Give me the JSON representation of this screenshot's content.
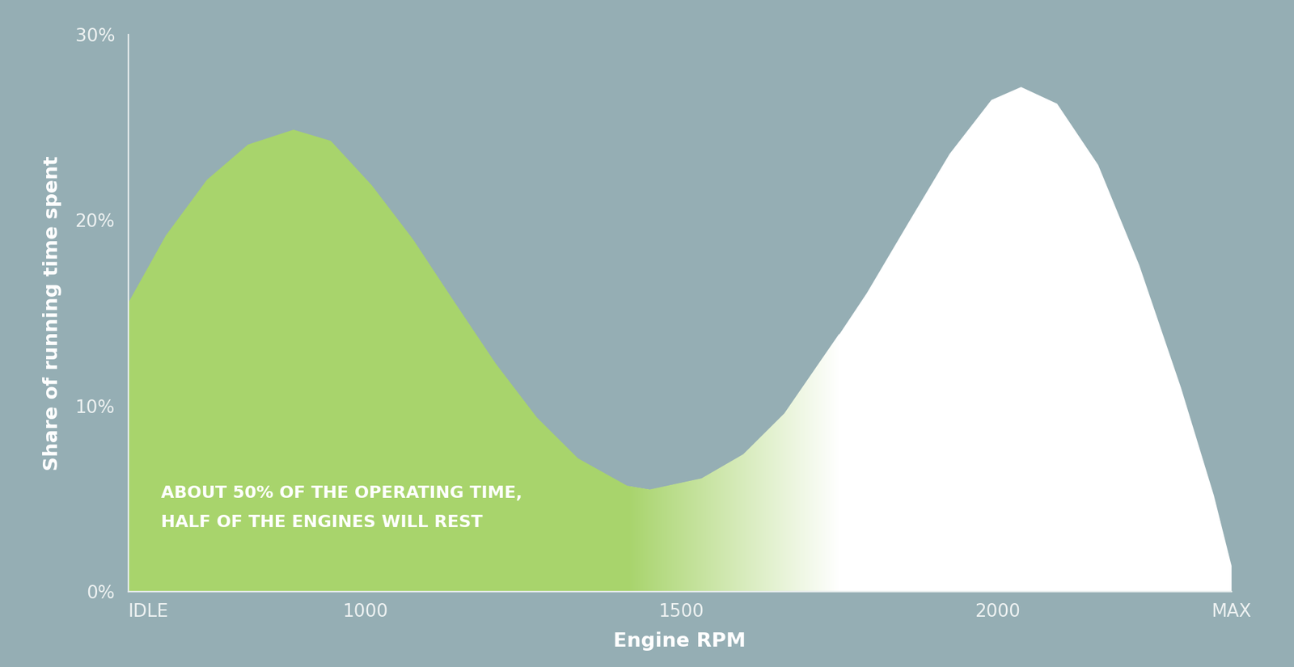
{
  "chart_data": {
    "type": "area",
    "x_label": "Engine RPM",
    "y_label": "Share of running time spent",
    "annotation": "ABOUT 50% OF THE OPERATING TIME,\nHALF OF THE ENGINES WILL REST",
    "x": [
      625,
      684,
      749,
      814,
      886,
      945,
      1010,
      1075,
      1141,
      1206,
      1271,
      1336,
      1415,
      1450,
      1532,
      1598,
      1663,
      1750,
      1793,
      1859,
      1924,
      1990,
      2037,
      2094,
      2159,
      2224,
      2290,
      2342,
      2370
    ],
    "series": [
      {
        "color": "#a8d46c",
        "values": [
          15.6,
          19.2,
          22.2,
          24.1,
          24.9,
          24.3,
          21.9,
          19.0,
          15.6,
          12.3,
          9.4,
          7.2,
          5.7,
          5.5,
          6.1,
          7.4,
          9.6,
          13.9,
          null,
          null,
          null,
          null,
          null,
          null,
          null,
          null,
          null,
          null,
          null
        ]
      },
      {
        "color": "#ffffff",
        "values": [
          null,
          null,
          null,
          null,
          null,
          null,
          null,
          null,
          null,
          null,
          null,
          null,
          5.7,
          5.5,
          6.1,
          7.4,
          9.6,
          13.9,
          16.1,
          19.9,
          23.6,
          26.5,
          27.2,
          26.3,
          23.0,
          17.6,
          11.0,
          5.2,
          1.4
        ]
      }
    ],
    "xlim": [
      625,
      2370
    ],
    "xticks": [
      {
        "value": 625,
        "label": "IDLE"
      },
      1000,
      1500,
      2000,
      {
        "value": 2370,
        "label": "MAX"
      }
    ],
    "ylim": [
      0,
      30
    ],
    "yticks": [
      {
        "value": 0,
        "label": "0%"
      },
      {
        "value": 10,
        "label": "10%"
      },
      {
        "value": 20,
        "label": "20%"
      },
      {
        "value": 30,
        "label": "30%"
      }
    ],
    "grid": false
  }
}
